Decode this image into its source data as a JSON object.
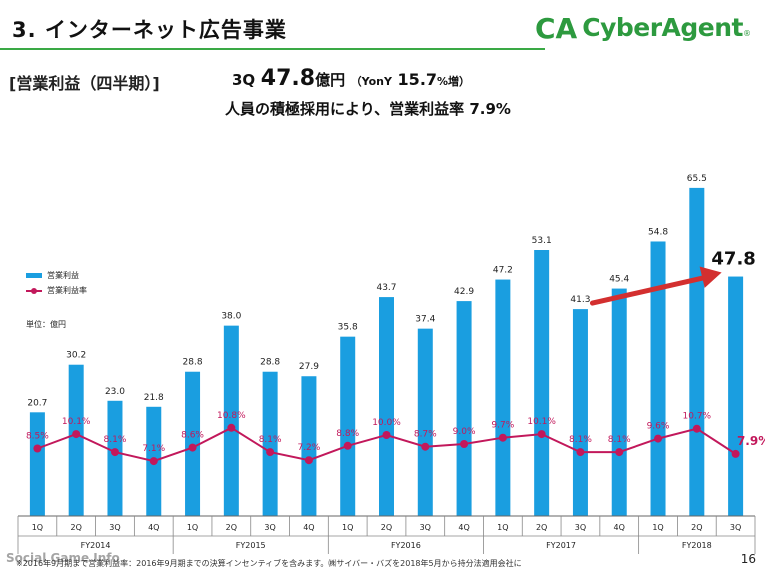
{
  "slide": {
    "title": "3. インターネット広告事業",
    "section_label": "[営業利益（四半期）]",
    "headline": {
      "quarter": "3Q",
      "value": "47.8",
      "unit": "億円",
      "yoy_label": "（YonY",
      "yoy_value": "15.7",
      "yoy_suffix": "%増）"
    },
    "subline": "人員の積極採用により、営業利益率 7.9%",
    "unit_label": "単位：億円",
    "footer_note": "※2016年9月期まで営業利益率：2016年9月期までの決算インセンティブを含みます。㈱サイバー・バズを2018年5月から持分法適用会社に",
    "watermark": "Social Game Info",
    "page_number": "16"
  },
  "logo": {
    "text": "CyberAgent",
    "mark": "CA",
    "color": "#2d9a3f"
  },
  "chart_data": {
    "type": "bar",
    "categories": [
      "1Q",
      "2Q",
      "3Q",
      "4Q",
      "1Q",
      "2Q",
      "3Q",
      "4Q",
      "1Q",
      "2Q",
      "3Q",
      "4Q",
      "1Q",
      "2Q",
      "3Q",
      "4Q",
      "1Q",
      "2Q",
      "3Q"
    ],
    "fiscal_years": [
      {
        "label": "FY2014",
        "start": 0,
        "count": 4
      },
      {
        "label": "FY2015",
        "start": 4,
        "count": 4
      },
      {
        "label": "FY2016",
        "start": 8,
        "count": 4
      },
      {
        "label": "FY2017",
        "start": 12,
        "count": 4
      },
      {
        "label": "FY2018",
        "start": 16,
        "count": 3
      }
    ],
    "series": [
      {
        "name": "営業利益",
        "kind": "bar",
        "color": "#1a9ee0",
        "values": [
          20.7,
          30.2,
          23.0,
          21.8,
          28.8,
          38.0,
          28.8,
          27.9,
          35.8,
          43.7,
          37.4,
          42.9,
          47.2,
          53.1,
          41.3,
          45.4,
          54.8,
          65.5,
          47.8
        ],
        "labels": [
          "20.7",
          "30.2",
          "23.0",
          "21.8",
          "28.8",
          "38.0",
          "28.8",
          "27.9",
          "35.8",
          "43.7",
          "37.4",
          "42.9",
          "47.2",
          "53.1",
          "41.3",
          "45.4",
          "54.8",
          "65.5",
          "47.8"
        ]
      },
      {
        "name": "営業利益率",
        "kind": "line",
        "color": "#c2185b",
        "values": [
          8.5,
          10.1,
          8.1,
          7.1,
          8.6,
          10.8,
          8.1,
          7.2,
          8.8,
          10.0,
          8.7,
          9.0,
          9.7,
          10.1,
          8.1,
          8.1,
          9.6,
          10.7,
          7.9
        ],
        "labels": [
          "8.5%",
          "10.1%",
          "8.1%",
          "7.1%",
          "8.6%",
          "10.8%",
          "8.1%",
          "7.2%",
          "8.8%",
          "10.0%",
          "8.7%",
          "9.0%",
          "9.7%",
          "10.1%",
          "8.1%",
          "8.1%",
          "9.6%",
          "10.7%",
          "7.9%"
        ]
      }
    ],
    "highlight_last": true,
    "ylim": [
      0,
      70
    ],
    "grid": false,
    "legend": "left"
  }
}
